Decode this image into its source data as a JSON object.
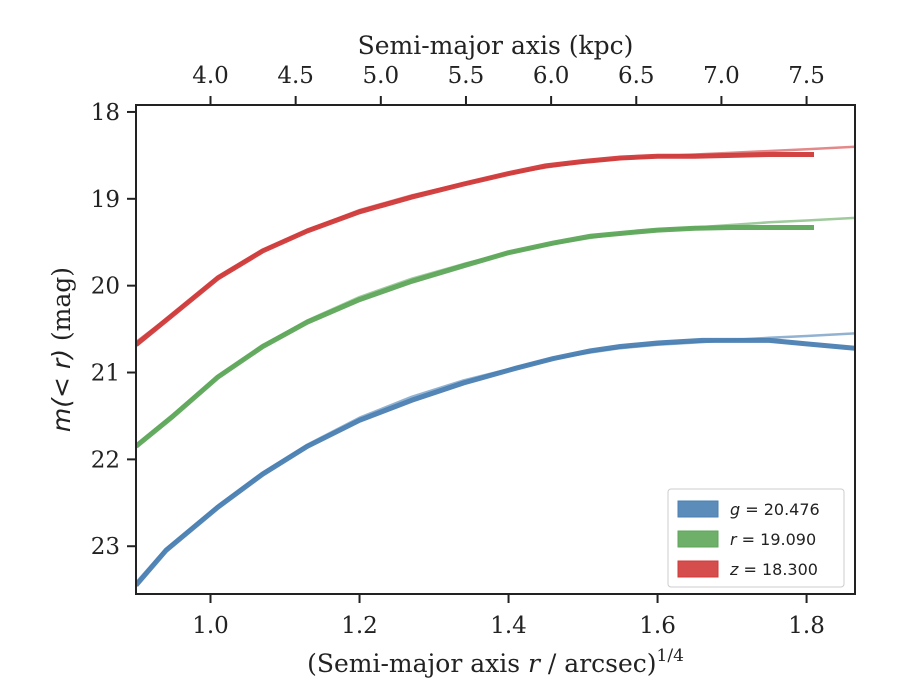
{
  "chart_data": {
    "type": "line",
    "title": "",
    "xlabel": "(Semi-major axis r / arcsec)1/4",
    "ylabel": "m(< r) (mag)",
    "top_xlabel": "Semi-major axis (kpc)",
    "xlim": [
      0.9,
      1.865
    ],
    "ylim": [
      23.55,
      17.92
    ],
    "y_inverted": true,
    "x_ticks": [
      1.0,
      1.2,
      1.4,
      1.6,
      1.8
    ],
    "x_tick_labels": [
      "1.0",
      "1.2",
      "1.4",
      "1.6",
      "1.8"
    ],
    "y_ticks": [
      18,
      19,
      20,
      21,
      22,
      23
    ],
    "y_tick_labels": [
      "18",
      "19",
      "20",
      "21",
      "22",
      "23"
    ],
    "top_ticks": [
      4.0,
      4.5,
      5.0,
      5.5,
      6.0,
      6.5,
      7.0,
      7.5
    ],
    "top_tick_labels": [
      "4.0",
      "4.5",
      "5.0",
      "5.5",
      "6.0",
      "6.5",
      "7.0",
      "7.5"
    ],
    "top_axis_anchor": {
      "x1": 1.0,
      "k1": 4.0,
      "x2": 1.8,
      "k2": 7.5
    },
    "grid": false,
    "legend_position": "lower-right",
    "series": [
      {
        "name": "g = 20.476",
        "legend_label": "g = 20.476",
        "color": "#4a7fb2",
        "data": {
          "x": [
            0.9,
            0.94,
            1.01,
            1.07,
            1.13,
            1.2,
            1.27,
            1.34,
            1.41,
            1.46,
            1.51,
            1.55,
            1.6,
            1.66,
            1.71,
            1.75,
            1.8,
            1.865
          ],
          "y": [
            23.45,
            23.05,
            22.55,
            22.17,
            21.85,
            21.55,
            21.32,
            21.12,
            20.95,
            20.84,
            20.75,
            20.7,
            20.66,
            20.63,
            20.63,
            20.63,
            20.67,
            20.72
          ]
        },
        "model": {
          "x": [
            0.9,
            0.94,
            1.01,
            1.07,
            1.13,
            1.2,
            1.27,
            1.34,
            1.41,
            1.46,
            1.51,
            1.55,
            1.6,
            1.66,
            1.71,
            1.75,
            1.8,
            1.865
          ],
          "y": [
            23.42,
            23.03,
            22.53,
            22.15,
            21.83,
            21.52,
            21.28,
            21.09,
            20.94,
            20.84,
            20.77,
            20.72,
            20.68,
            20.65,
            20.62,
            20.6,
            20.58,
            20.55
          ]
        }
      },
      {
        "name": "r = 19.090",
        "legend_label": "r = 19.090",
        "color": "#5ea65a",
        "data": {
          "x": [
            0.9,
            0.95,
            1.01,
            1.07,
            1.13,
            1.2,
            1.27,
            1.34,
            1.4,
            1.46,
            1.51,
            1.56,
            1.6,
            1.65,
            1.7,
            1.74,
            1.81
          ],
          "y": [
            21.85,
            21.5,
            21.05,
            20.7,
            20.42,
            20.16,
            19.95,
            19.77,
            19.62,
            19.51,
            19.43,
            19.39,
            19.36,
            19.34,
            19.33,
            19.33,
            19.33
          ]
        },
        "model": {
          "x": [
            0.9,
            0.95,
            1.01,
            1.07,
            1.13,
            1.2,
            1.27,
            1.34,
            1.4,
            1.46,
            1.51,
            1.56,
            1.6,
            1.65,
            1.7,
            1.75,
            1.8,
            1.865
          ],
          "y": [
            21.83,
            21.48,
            21.04,
            20.69,
            20.4,
            20.13,
            19.92,
            19.75,
            19.62,
            19.52,
            19.45,
            19.39,
            19.36,
            19.33,
            19.3,
            19.27,
            19.25,
            19.22
          ]
        }
      },
      {
        "name": "z = 18.300",
        "legend_label": "z = 18.300",
        "color": "#d03a3a",
        "data": {
          "x": [
            0.9,
            0.95,
            1.01,
            1.07,
            1.13,
            1.2,
            1.27,
            1.34,
            1.4,
            1.45,
            1.5,
            1.55,
            1.6,
            1.65,
            1.7,
            1.75,
            1.81
          ],
          "y": [
            20.68,
            20.33,
            19.91,
            19.6,
            19.37,
            19.15,
            18.98,
            18.83,
            18.71,
            18.62,
            18.57,
            18.53,
            18.51,
            18.51,
            18.5,
            18.49,
            18.49
          ]
        },
        "model": {
          "x": [
            0.9,
            0.95,
            1.01,
            1.07,
            1.13,
            1.2,
            1.27,
            1.34,
            1.4,
            1.45,
            1.5,
            1.55,
            1.6,
            1.65,
            1.7,
            1.75,
            1.8,
            1.865
          ],
          "y": [
            20.65,
            20.32,
            19.9,
            19.59,
            19.36,
            19.13,
            18.96,
            18.82,
            18.71,
            18.64,
            18.58,
            18.54,
            18.51,
            18.49,
            18.47,
            18.45,
            18.43,
            18.4
          ]
        }
      }
    ]
  }
}
